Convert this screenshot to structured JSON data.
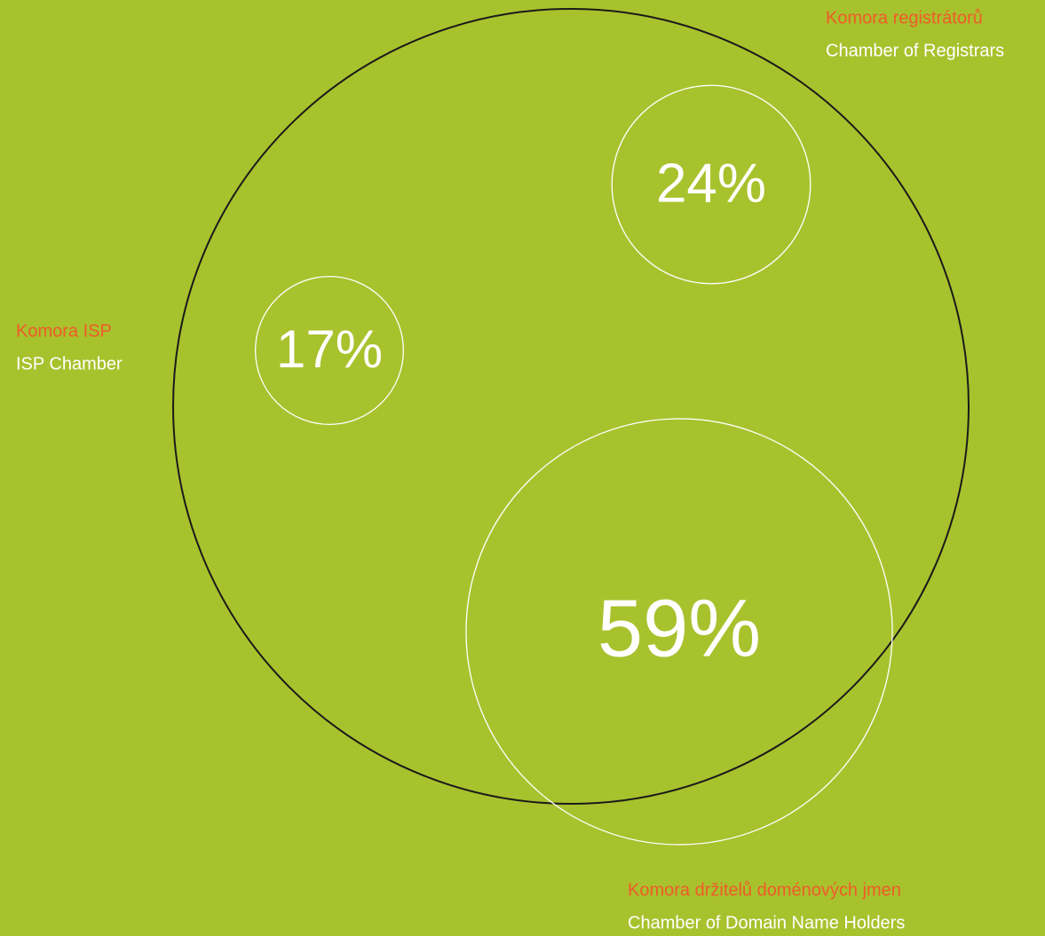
{
  "chart_data": {
    "type": "bubble",
    "categories": [
      "Komora registrátorů",
      "Komora ISP",
      "Komora držitelů doménových jmen"
    ],
    "category_translations": [
      "Chamber of Registrars",
      "ISP Chamber",
      "Chamber of Domain Name Holders"
    ],
    "values": [
      24,
      17,
      59
    ],
    "value_labels": [
      "24%",
      "17%",
      "59%"
    ]
  }
}
